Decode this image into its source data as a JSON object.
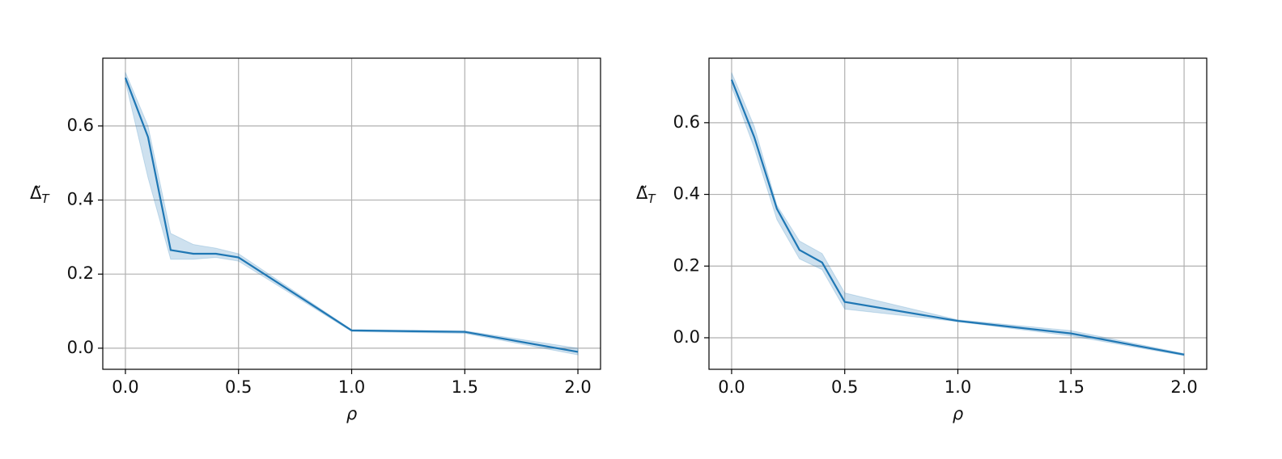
{
  "chart_data": [
    {
      "type": "line",
      "xlabel": "ρ",
      "ylabel": {
        "base": "Δ̃",
        "sub": "T"
      },
      "x": [
        0,
        0.1,
        0.2,
        0.3,
        0.4,
        0.5,
        1.0,
        1.5,
        2.0
      ],
      "series": [
        {
          "color": "#1f77b4",
          "values": [
            0.73,
            0.57,
            0.265,
            0.255,
            0.255,
            0.245,
            0.048,
            0.044,
            -0.01
          ],
          "lower": [
            0.72,
            0.46,
            0.24,
            0.24,
            0.245,
            0.235,
            0.045,
            0.04,
            -0.018
          ],
          "upper": [
            0.745,
            0.6,
            0.31,
            0.28,
            0.27,
            0.255,
            0.05,
            0.047,
            0.0
          ]
        }
      ],
      "xlim": [
        -0.1,
        2.1
      ],
      "ylim": [
        -0.057,
        0.783
      ],
      "xticks": [
        {
          "value": 0,
          "label": "0.0"
        },
        {
          "value": 0.5,
          "label": "0.5"
        },
        {
          "value": 1,
          "label": "1.0"
        },
        {
          "value": 1.5,
          "label": "1.5"
        },
        {
          "value": 2,
          "label": "2.0"
        }
      ],
      "yticks": [
        {
          "value": 0,
          "label": "0.0"
        },
        {
          "value": 0.2,
          "label": "0.2"
        },
        {
          "value": 0.4,
          "label": "0.4"
        },
        {
          "value": 0.6,
          "label": "0.6"
        }
      ],
      "grid": true
    },
    {
      "type": "line",
      "xlabel": "ρ",
      "ylabel": {
        "base": "Δ̃",
        "sub": "T"
      },
      "x": [
        0,
        0.1,
        0.2,
        0.3,
        0.4,
        0.5,
        1.0,
        1.5,
        2.0
      ],
      "series": [
        {
          "color": "#1f77b4",
          "values": [
            0.72,
            0.56,
            0.36,
            0.245,
            0.21,
            0.1,
            0.047,
            0.012,
            -0.047
          ],
          "lower": [
            0.7,
            0.53,
            0.33,
            0.22,
            0.19,
            0.08,
            0.045,
            0.005,
            -0.05
          ],
          "upper": [
            0.74,
            0.59,
            0.37,
            0.27,
            0.235,
            0.125,
            0.05,
            0.02,
            -0.044
          ]
        }
      ],
      "xlim": [
        -0.1,
        2.1
      ],
      "ylim": [
        -0.088,
        0.78
      ],
      "xticks": [
        {
          "value": 0,
          "label": "0.0"
        },
        {
          "value": 0.5,
          "label": "0.5"
        },
        {
          "value": 1,
          "label": "1.0"
        },
        {
          "value": 1.5,
          "label": "1.5"
        },
        {
          "value": 2,
          "label": "2.0"
        }
      ],
      "yticks": [
        {
          "value": 0,
          "label": "0.0"
        },
        {
          "value": 0.2,
          "label": "0.2"
        },
        {
          "value": 0.4,
          "label": "0.4"
        },
        {
          "value": 0.6,
          "label": "0.6"
        }
      ],
      "grid": true
    }
  ]
}
